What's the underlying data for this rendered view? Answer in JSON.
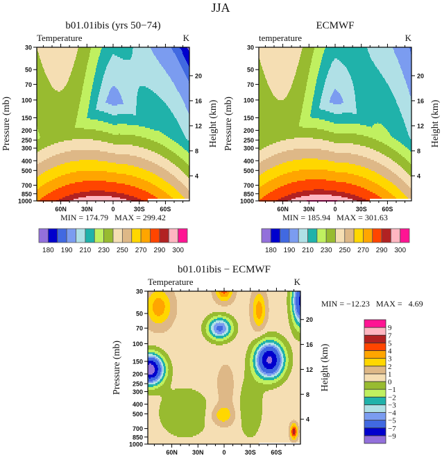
{
  "title": "JJA",
  "chart_data": [
    {
      "type": "contour",
      "title": "b01.01ibis (yrs 50−74)",
      "left_label": "Temperature",
      "right_label": "K",
      "ylabel": "Pressure (mb)",
      "y2label": "Height (km)",
      "xticks": [
        "60N",
        "30N",
        "0",
        "30S",
        "60S"
      ],
      "yticks": [
        "30",
        "50",
        "70",
        "100",
        "150",
        "200",
        "250",
        "300",
        "400",
        "500",
        "700",
        "850",
        "1000"
      ],
      "y2ticks": [
        "20",
        "16",
        "12",
        "8",
        "4"
      ],
      "ylim_mb": [
        1000,
        30
      ],
      "xlim_lat": [
        "90N",
        "90S"
      ],
      "y_scale": "log",
      "stats": "MIN = 174.79   MAX = 299.42",
      "min": 174.79,
      "max": 299.42,
      "colorbar": {
        "orientation": "horizontal",
        "levels": [
          180,
          185,
          190,
          200,
          210,
          220,
          230,
          240,
          250,
          260,
          270,
          280,
          290,
          295,
          300
        ],
        "labels": [
          "180",
          "190",
          "210",
          "230",
          "250",
          "270",
          "290",
          "300"
        ],
        "colors": [
          "#9370DB",
          "#0000CD",
          "#4169E1",
          "#7B9CF0",
          "#B0E0E6",
          "#20B2AA",
          "#C0F060",
          "#98BB30",
          "#F5DEB3",
          "#DEB887",
          "#FFD700",
          "#FFA500",
          "#FF4500",
          "#B22222",
          "#FFB6C1",
          "#FF1493"
        ]
      }
    },
    {
      "type": "contour",
      "title": "ECMWF",
      "left_label": "temperature",
      "right_label": "K",
      "ylabel": "Pressure (mb)",
      "y2label": "Height (km)",
      "xticks": [
        "60N",
        "30N",
        "0",
        "30S",
        "60S"
      ],
      "yticks": [
        "30",
        "50",
        "70",
        "100",
        "150",
        "200",
        "250",
        "300",
        "400",
        "500",
        "700",
        "850",
        "1000"
      ],
      "y2ticks": [
        "20",
        "16",
        "12",
        "8",
        "4"
      ],
      "ylim_mb": [
        1000,
        30
      ],
      "xlim_lat": [
        "90N",
        "90S"
      ],
      "y_scale": "log",
      "stats": "MIN = 185.94   MAX = 301.63",
      "min": 185.94,
      "max": 301.63,
      "colorbar": {
        "orientation": "horizontal",
        "levels": [
          180,
          185,
          190,
          200,
          210,
          220,
          230,
          240,
          250,
          260,
          270,
          280,
          290,
          295,
          300
        ],
        "labels": [
          "180",
          "190",
          "210",
          "230",
          "250",
          "270",
          "290",
          "300"
        ],
        "colors": [
          "#9370DB",
          "#0000CD",
          "#4169E1",
          "#7B9CF0",
          "#B0E0E6",
          "#20B2AA",
          "#C0F060",
          "#98BB30",
          "#F5DEB3",
          "#DEB887",
          "#FFD700",
          "#FFA500",
          "#FF4500",
          "#B22222",
          "#FFB6C1",
          "#FF1493"
        ]
      }
    },
    {
      "type": "contour",
      "title": "b01.01ibis − ECMWF",
      "left_label": "Temperature",
      "right_label": "K",
      "ylabel": "Pressure (mb)",
      "y2label": "Height (km)",
      "xticks": [
        "60N",
        "30N",
        "0",
        "30S",
        "60S"
      ],
      "yticks": [
        "30",
        "50",
        "70",
        "100",
        "150",
        "200",
        "250",
        "300",
        "400",
        "500",
        "700",
        "850",
        "1000"
      ],
      "y2ticks": [
        "20",
        "16",
        "12",
        "8",
        "4"
      ],
      "ylim_mb": [
        1000,
        30
      ],
      "xlim_lat": [
        "90N",
        "90S"
      ],
      "y_scale": "log",
      "stats": "MIN = −12.23   MAX =   4.69",
      "min": -12.23,
      "max": 4.69,
      "colorbar": {
        "orientation": "vertical",
        "levels": [
          -9,
          -7,
          -5,
          -4,
          -3,
          -2,
          -1,
          0,
          1,
          2,
          3,
          4,
          5,
          7,
          9
        ],
        "labels": [
          "−9",
          "−7",
          "−5",
          "−4",
          "−3",
          "−2",
          "−1",
          "0",
          "1",
          "2",
          "3",
          "4",
          "5",
          "7",
          "9"
        ],
        "colors": [
          "#9370DB",
          "#0000CD",
          "#4169E1",
          "#7B9CF0",
          "#B0E0E6",
          "#20B2AA",
          "#C0F060",
          "#98BB30",
          "#F5DEB3",
          "#DEB887",
          "#FFD700",
          "#FFA500",
          "#FF4500",
          "#B22222",
          "#FFB6C1",
          "#FF1493"
        ]
      }
    }
  ]
}
